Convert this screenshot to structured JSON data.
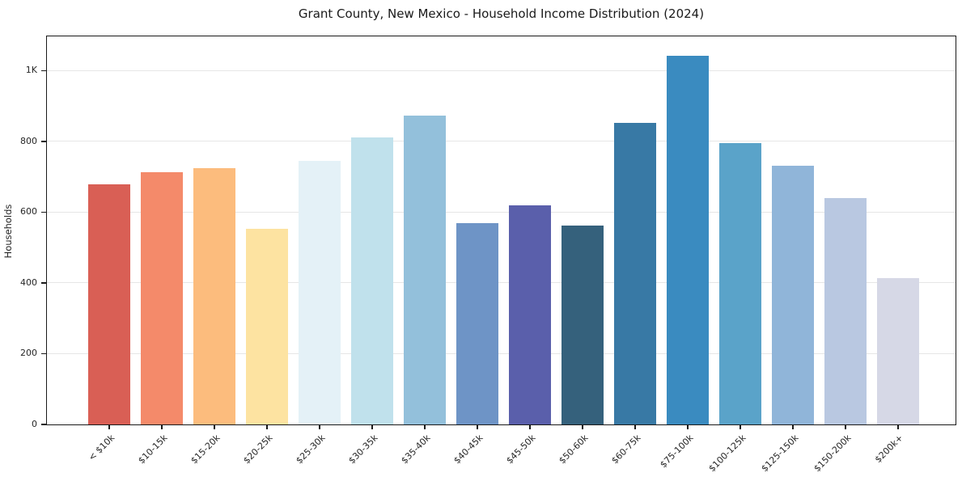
{
  "chart_data": {
    "type": "bar",
    "title": "Grant County, New Mexico - Household Income Distribution (2024)",
    "xlabel": "",
    "ylabel": "Households",
    "categories": [
      "< $10k",
      "$10-15k",
      "$15-20k",
      "$20-25k",
      "$25-30k",
      "$30-35k",
      "$35-40k",
      "$40-45k",
      "$45-50k",
      "$50-60k",
      "$60-75k",
      "$75-100k",
      "$100-125k",
      "$125-150k",
      "$150-200k",
      "$200k+"
    ],
    "values": [
      678,
      712,
      725,
      553,
      746,
      811,
      872,
      569,
      620,
      563,
      853,
      1043,
      796,
      732,
      640,
      413
    ],
    "bar_colors": [
      "#d95f55",
      "#f48a6a",
      "#fcbc7d",
      "#fde3a1",
      "#e4f1f7",
      "#c0e1ec",
      "#93c0db",
      "#6e94c6",
      "#5a5fab",
      "#35617c",
      "#3879a5",
      "#3a8bc0",
      "#5aa3c9",
      "#90b5d9",
      "#b9c8e1",
      "#d6d8e6"
    ],
    "ylim": [
      0,
      1097
    ],
    "yticks": [
      {
        "value": 0,
        "label": "0"
      },
      {
        "value": 200,
        "label": "200"
      },
      {
        "value": 400,
        "label": "400"
      },
      {
        "value": 600,
        "label": "600"
      },
      {
        "value": 800,
        "label": "800"
      },
      {
        "value": 1000,
        "label": "1K"
      }
    ],
    "grid": "horizontal-only",
    "legend": "none",
    "background_color": "#ffffff",
    "gridline_color": "#e6e6e6",
    "spine_color": "#1a1a1a",
    "text_color": "#262626"
  }
}
